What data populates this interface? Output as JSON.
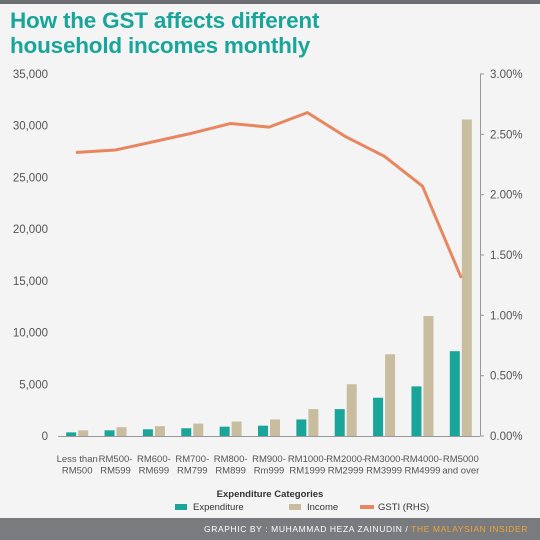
{
  "title_line1": "How the GST affects different",
  "title_line2": "household incomes monthly",
  "footer": {
    "credit": "GRAPHIC BY : MUHAMMAD HEZA ZAINUDIN",
    "separator": " / ",
    "publisher": "THE MALAYSIAN INSIDER"
  },
  "colors": {
    "expenditure": "#1aa59a",
    "income": "#c8bd9f",
    "gsti": "#e8875f",
    "title": "#1aa59a",
    "axis_text": "#555555"
  },
  "chart_data": {
    "type": "bar",
    "xlabel": "Expenditure Categories",
    "categories": [
      [
        "Less than",
        "RM500"
      ],
      [
        "RM500-",
        "RM599"
      ],
      [
        "RM600-",
        "RM699"
      ],
      [
        "RM700-",
        "RM799"
      ],
      [
        "RM800-",
        "RM899"
      ],
      [
        "RM900-",
        "Rm999"
      ],
      [
        "RM1000-",
        "RM1999"
      ],
      [
        "RM2000-",
        "RM2999"
      ],
      [
        "RM3000-",
        "RM3999"
      ],
      [
        "RM4000-",
        "RM4999"
      ],
      [
        "RM5000",
        "and over"
      ]
    ],
    "ylim": [
      0,
      35000
    ],
    "yticks": [
      "0",
      "5,000",
      "10,000",
      "15,000",
      "20,000",
      "25,000",
      "30,000",
      "35,000"
    ],
    "y2lim": [
      0,
      3.0
    ],
    "y2ticks": [
      "0.00%",
      "0.50%",
      "1.00%",
      "1.50%",
      "2.00%",
      "2.50%",
      "3.00%"
    ],
    "series": [
      {
        "name": "Expenditure",
        "type": "bar",
        "axis": "left",
        "values": [
          350,
          550,
          650,
          750,
          900,
          1000,
          1600,
          2600,
          3700,
          4800,
          8200
        ]
      },
      {
        "name": "Income",
        "type": "bar",
        "axis": "left",
        "values": [
          550,
          850,
          950,
          1200,
          1400,
          1600,
          2600,
          5000,
          7900,
          11600,
          30600
        ]
      },
      {
        "name": "GSTI (RHS)",
        "type": "line",
        "axis": "right",
        "values": [
          2.35,
          2.37,
          2.44,
          2.51,
          2.59,
          2.56,
          2.68,
          2.48,
          2.32,
          2.07,
          1.32
        ]
      }
    ],
    "legend": "bottom"
  }
}
